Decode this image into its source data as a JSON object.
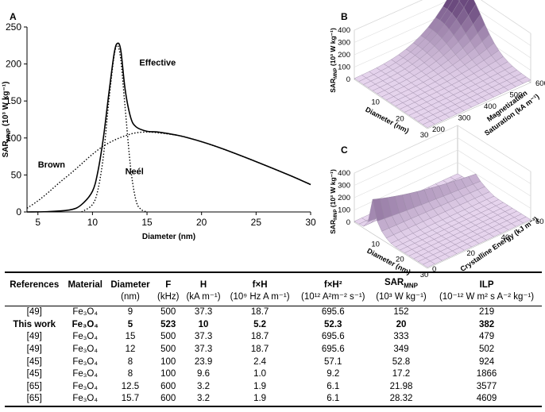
{
  "figure": {
    "panel_a": {
      "label": "A",
      "ylabel_main": "SAR",
      "ylabel_sub": "MNP",
      "ylabel_unit": " (10³ W kg⁻¹)",
      "xlabel": "Diameter (nm)",
      "annotations": {
        "effective": "Effective",
        "brown": "Brown",
        "neel": "Neél"
      }
    },
    "panel_b": {
      "label": "B",
      "zlabel": "SAR",
      "zlabel_sub": "MNP",
      "zlabel_unit": " (10³ W kg⁻¹)",
      "xlabel": "Diameter (nm)",
      "ylabel_line1": "Magnetization",
      "ylabel_line2": "Saturation (kA m⁻¹)",
      "zticks": [
        "0",
        "100",
        "200",
        "300",
        "400"
      ],
      "xticks": [
        "10",
        "20",
        "30"
      ],
      "yticks": [
        "200",
        "300",
        "400",
        "500",
        "600"
      ]
    },
    "panel_c": {
      "label": "C",
      "zlabel": "SAR",
      "zlabel_sub": "MNP",
      "zlabel_unit": " (10³ W kg⁻¹)",
      "xlabel": "Diameter (nm)",
      "ylabel": "Crystalline Energy (kJ m⁻³)",
      "zticks": [
        "0",
        "100",
        "200",
        "300",
        "400"
      ],
      "xticks": [
        "10",
        "20",
        "30"
      ],
      "yticks": [
        "0",
        "20",
        "40",
        "60"
      ]
    }
  },
  "chart_data": {
    "type": "line",
    "title": "",
    "xlabel": "Diameter (nm)",
    "ylabel": "SARMNP (10³ W kg⁻¹)",
    "xlim": [
      4,
      30
    ],
    "ylim": [
      0,
      250
    ],
    "xticks": [
      5,
      10,
      15,
      20,
      25,
      30
    ],
    "yticks": [
      0,
      50,
      100,
      150,
      200,
      250
    ],
    "series": [
      {
        "name": "Effective",
        "style": "solid",
        "x": [
          4,
          6,
          8,
          9,
          10,
          10.5,
          11,
          11.5,
          12,
          12.3,
          12.6,
          13,
          13.5,
          14,
          15,
          16,
          18,
          20,
          22,
          25,
          28,
          30
        ],
        "y": [
          0,
          0.5,
          3,
          10,
          28,
          55,
          100,
          160,
          215,
          228,
          218,
          165,
          128,
          115,
          109,
          108,
          103,
          95,
          85,
          68,
          50,
          37
        ]
      },
      {
        "name": "Brown",
        "style": "dotted",
        "x": [
          4,
          5,
          6,
          7,
          8,
          9,
          10,
          11,
          12,
          13,
          14,
          15,
          16,
          18,
          20,
          22,
          25,
          28,
          30
        ],
        "y": [
          5,
          15,
          27,
          40,
          52,
          65,
          78,
          89,
          97,
          103,
          107,
          108,
          107,
          103,
          95,
          85,
          68,
          50,
          37
        ]
      },
      {
        "name": "Neél",
        "style": "dotted",
        "x": [
          9,
          10,
          10.5,
          11,
          11.5,
          12,
          12.3,
          12.6,
          13,
          13.5,
          14,
          14.5,
          15
        ],
        "y": [
          0,
          10,
          30,
          75,
          150,
          212,
          225,
          205,
          140,
          60,
          15,
          3,
          0
        ]
      }
    ]
  },
  "table": {
    "headers": [
      {
        "main": "References",
        "sub": ""
      },
      {
        "main": "Material",
        "sub": ""
      },
      {
        "main": "Diameter",
        "sub": "(nm)"
      },
      {
        "main": "F",
        "sub": "(kHz)"
      },
      {
        "main": "H",
        "sub": "(kA m⁻¹)"
      },
      {
        "main": "f×H",
        "sub": "(10⁹ Hz A m⁻¹)"
      },
      {
        "main": "f×H²",
        "sub": "(10¹² A²m⁻² s⁻¹)"
      },
      {
        "main": "SARMNP",
        "sub": "(10³ W kg⁻¹)"
      },
      {
        "main": "ILP",
        "sub": "(10⁻¹² W m² s A⁻² kg⁻¹)"
      }
    ],
    "rows": [
      [
        "[49]",
        "Fe₃O₄",
        "9",
        "500",
        "37.3",
        "18.7",
        "695.6",
        "152",
        "219"
      ],
      [
        "This work",
        "Fe₃O₄",
        "5",
        "523",
        "10",
        "5.2",
        "52.3",
        "20",
        "382"
      ],
      [
        "[49]",
        "Fe₃O₄",
        "15",
        "500",
        "37.3",
        "18.7",
        "695.6",
        "333",
        "479"
      ],
      [
        "[49]",
        "Fe₃O₄",
        "12",
        "500",
        "37.3",
        "18.7",
        "695.6",
        "349",
        "502"
      ],
      [
        "[45]",
        "Fe₃O₄",
        "8",
        "100",
        "23.9",
        "2.4",
        "57.1",
        "52.8",
        "924"
      ],
      [
        "[45]",
        "Fe₃O₄",
        "8",
        "100",
        "9.6",
        "1.0",
        "9.2",
        "17.2",
        "1866"
      ],
      [
        "[65]",
        "Fe₃O₄",
        "12.5",
        "600",
        "3.2",
        "1.9",
        "6.1",
        "21.98",
        "3577"
      ],
      [
        "[65]",
        "Fe₃O₄",
        "15.7",
        "600",
        "3.2",
        "1.9",
        "6.1",
        "28.32",
        "4609"
      ]
    ]
  },
  "colors": {
    "surface_fill": "#e9d8f0",
    "surface_peak": "#6b4a7e",
    "grid": "#9a8aa6"
  }
}
